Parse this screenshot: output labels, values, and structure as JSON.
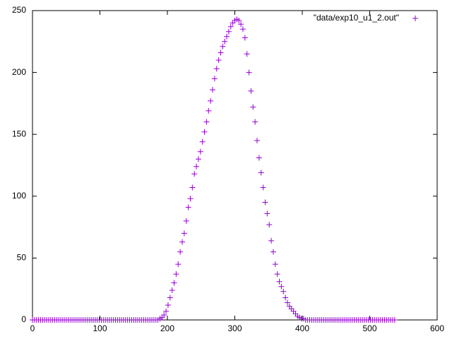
{
  "chart_data": {
    "type": "scatter",
    "xlim": [
      0,
      600
    ],
    "xticks": [
      0,
      100,
      200,
      300,
      400,
      500,
      600
    ],
    "ylim": [
      0,
      250
    ],
    "yticks": [
      0,
      50,
      100,
      150,
      200,
      250
    ],
    "grid": false,
    "legend": "top-right",
    "series": [
      {
        "name": "\"data/exp10_u1_2.out\"",
        "color": "#9400d3",
        "x": [
          0,
          3,
          6,
          9,
          12,
          15,
          18,
          21,
          24,
          27,
          30,
          33,
          36,
          39,
          42,
          45,
          48,
          51,
          54,
          57,
          60,
          63,
          66,
          69,
          72,
          75,
          78,
          81,
          84,
          87,
          90,
          93,
          96,
          99,
          102,
          105,
          108,
          111,
          114,
          117,
          120,
          123,
          126,
          129,
          132,
          135,
          138,
          141,
          144,
          147,
          150,
          153,
          156,
          159,
          162,
          165,
          168,
          171,
          174,
          177,
          180,
          183,
          186,
          189,
          192,
          195,
          198,
          201,
          204,
          207,
          210,
          213,
          216,
          219,
          222,
          225,
          228,
          231,
          234,
          237,
          240,
          243,
          246,
          249,
          252,
          255,
          258,
          261,
          264,
          267,
          270,
          273,
          276,
          279,
          282,
          285,
          288,
          291,
          294,
          297,
          300,
          303,
          306,
          309,
          312,
          315,
          318,
          321,
          324,
          327,
          330,
          333,
          336,
          339,
          342,
          345,
          348,
          351,
          354,
          357,
          360,
          363,
          366,
          369,
          372,
          375,
          378,
          381,
          384,
          387,
          390,
          393,
          396,
          399,
          402,
          405,
          408,
          411,
          414,
          417,
          420,
          423,
          426,
          429,
          432,
          435,
          438,
          441,
          444,
          447,
          450,
          453,
          456,
          459,
          462,
          465,
          468,
          471,
          474,
          477,
          480,
          483,
          486,
          489,
          492,
          495,
          498,
          501,
          504,
          507,
          510,
          513,
          516,
          519,
          522,
          525,
          528,
          531,
          534,
          537
        ],
        "values": [
          0,
          0,
          0,
          0,
          0,
          0,
          0,
          0,
          0,
          0,
          0,
          0,
          0,
          0,
          0,
          0,
          0,
          0,
          0,
          0,
          0,
          0,
          0,
          0,
          0,
          0,
          0,
          0,
          0,
          0,
          0,
          0,
          0,
          0,
          0,
          0,
          0,
          0,
          0,
          0,
          0,
          0,
          0,
          0,
          0,
          0,
          0,
          0,
          0,
          0,
          0,
          0,
          0,
          0,
          0,
          0,
          0,
          0,
          0,
          0,
          0,
          0,
          0,
          1,
          2,
          4,
          7,
          12,
          18,
          24,
          30,
          37,
          45,
          55,
          63,
          70,
          80,
          91,
          98,
          107,
          118,
          124,
          130,
          136,
          144,
          152,
          160,
          169,
          177,
          186,
          195,
          203,
          210,
          216,
          221,
          225,
          229,
          233,
          237,
          240,
          242,
          243,
          242,
          239,
          235,
          228,
          215,
          200,
          185,
          172,
          160,
          145,
          131,
          119,
          107,
          95,
          86,
          77,
          64,
          55,
          45,
          37,
          31,
          27,
          23,
          18,
          14,
          11,
          9,
          7,
          5,
          3,
          2,
          1,
          1,
          0,
          0,
          0,
          0,
          0,
          0,
          0,
          0,
          0,
          0,
          0,
          0,
          0,
          0,
          0,
          0,
          0,
          0,
          0,
          0,
          0,
          0,
          0,
          0,
          0,
          0,
          0,
          0,
          0,
          0,
          0,
          0,
          0,
          0,
          0,
          0,
          0,
          0,
          0,
          0,
          0,
          0,
          0,
          0,
          0
        ]
      }
    ]
  }
}
